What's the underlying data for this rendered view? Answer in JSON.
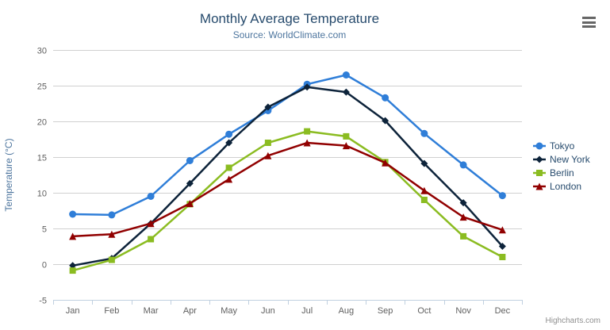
{
  "credits": "Highcharts.com",
  "menu": {
    "icon": "hamburger-icon"
  },
  "colors": {
    "title": "#274b6d",
    "subtitle": "#4d759e",
    "axis_label": "#606060",
    "axis_title": "#4d759e",
    "gridline": "#d0d0d0",
    "axis_line": "#c0d0e0",
    "legend_text": "#274b6d",
    "credits_text": "#909090"
  },
  "chart_data": {
    "type": "line",
    "title": "Monthly Average Temperature",
    "subtitle": "Source: WorldClimate.com",
    "xlabel": "",
    "ylabel": "Temperature (°C)",
    "ylim": [
      -5,
      30
    ],
    "ytick_interval": 5,
    "grid": true,
    "legend_position": "right",
    "categories": [
      "Jan",
      "Feb",
      "Mar",
      "Apr",
      "May",
      "Jun",
      "Jul",
      "Aug",
      "Sep",
      "Oct",
      "Nov",
      "Dec"
    ],
    "series": [
      {
        "name": "Tokyo",
        "color": "#2f7ed8",
        "marker": "circle",
        "values": [
          7.0,
          6.9,
          9.5,
          14.5,
          18.2,
          21.5,
          25.2,
          26.5,
          23.3,
          18.3,
          13.9,
          9.6
        ]
      },
      {
        "name": "New York",
        "color": "#0d233a",
        "marker": "diamond",
        "values": [
          -0.2,
          0.8,
          5.7,
          11.3,
          17.0,
          22.0,
          24.8,
          24.1,
          20.1,
          14.1,
          8.6,
          2.5
        ]
      },
      {
        "name": "Berlin",
        "color": "#8bbc21",
        "marker": "square",
        "values": [
          -0.9,
          0.6,
          3.5,
          8.4,
          13.5,
          17.0,
          18.6,
          17.9,
          14.3,
          9.0,
          3.9,
          1.0
        ]
      },
      {
        "name": "London",
        "color": "#910000",
        "marker": "triangle",
        "values": [
          3.9,
          4.2,
          5.7,
          8.5,
          11.9,
          15.2,
          17.0,
          16.6,
          14.2,
          10.3,
          6.6,
          4.8
        ]
      }
    ]
  }
}
